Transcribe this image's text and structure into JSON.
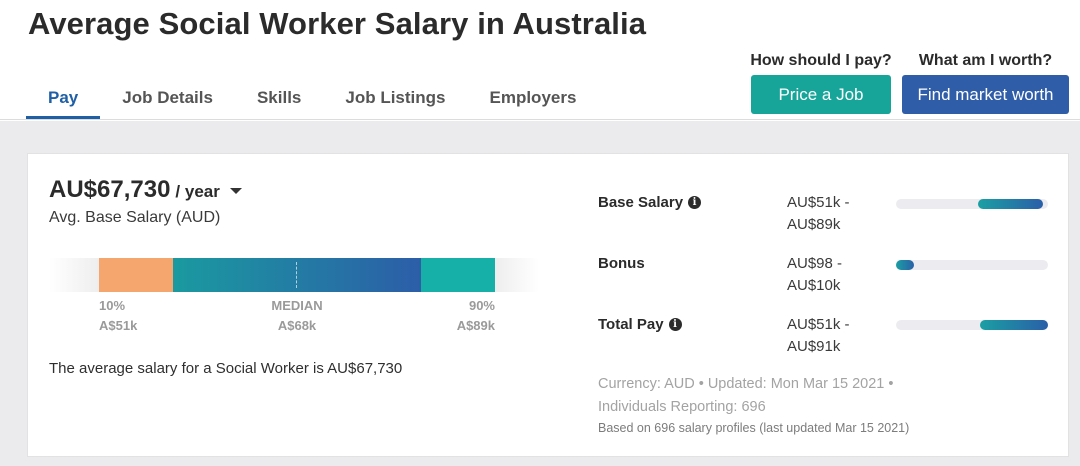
{
  "page": {
    "title": "Average Social Worker Salary in Australia"
  },
  "tabs": [
    {
      "label": "Pay",
      "active": true
    },
    {
      "label": "Job Details"
    },
    {
      "label": "Skills"
    },
    {
      "label": "Job Listings"
    },
    {
      "label": "Employers"
    }
  ],
  "cta": {
    "price_question": "How should I pay?",
    "price_button": "Price a Job",
    "worth_question": "What am I worth?",
    "worth_button": "Find market worth"
  },
  "salary": {
    "amount": "AU$67,730",
    "period": "/ year",
    "subtitle": "Avg. Base Salary (AUD)",
    "percentiles": {
      "p10_label": "10%",
      "p10_value": "A$51k",
      "median_label": "MEDIAN",
      "median_value": "A$68k",
      "p90_label": "90%",
      "p90_value": "A$89k"
    },
    "summary": "The average salary for a Social Worker is AU$67,730"
  },
  "breakdown": [
    {
      "label": "Base Salary",
      "info": true,
      "range_line1": "AU$51k -",
      "range_line2": "AU$89k",
      "fill_start_fraction": 0.54,
      "fill_end_fraction": 0.97
    },
    {
      "label": "Bonus",
      "info": false,
      "range_line1": "AU$98 -",
      "range_line2": "AU$10k",
      "fill_start_fraction": 0.0,
      "fill_end_fraction": 0.12
    },
    {
      "label": "Total Pay",
      "info": true,
      "range_line1": "AU$51k -",
      "range_line2": "AU$91k",
      "fill_start_fraction": 0.55,
      "fill_end_fraction": 1.0
    }
  ],
  "meta": {
    "line1": "Currency: AUD • Updated: Mon Mar 15 2021 •",
    "line2": "Individuals Reporting: 696",
    "line3": "Based on 696 salary profiles (last updated Mar 15 2021)"
  },
  "colors": {
    "tab_active": "#1f5fa6",
    "price_button": "#17a59a",
    "worth_button": "#2f5da8",
    "bar_low": "#f5a56e",
    "bar_mid_start": "#1a9aa0",
    "bar_mid_end": "#2c5ea8",
    "bar_high": "#17b0a8"
  },
  "icons": {
    "info": "info-icon",
    "caret": "chevron-down-icon"
  }
}
